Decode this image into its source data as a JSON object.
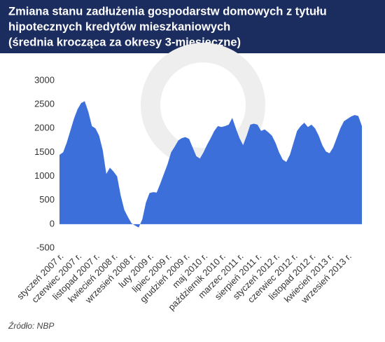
{
  "chart_data": {
    "type": "area",
    "title": [
      "Zmiana stanu zadłużenia gospodarstw domowych z tytułu",
      "hipotecznych kredytów mieszkaniowych",
      "(średnia krocząca za okresy 3-miesięczne)"
    ],
    "source": "Źródło: NBP",
    "color": "#3d6fdb",
    "categories": [
      "styczeń 2007 r.",
      null,
      null,
      null,
      null,
      "czerwiec 2007 r.",
      null,
      null,
      null,
      null,
      "listopad 2007 r.",
      null,
      null,
      null,
      null,
      "kwiecień 2008 r.",
      null,
      null,
      null,
      null,
      "wrzesień 2008 r.",
      null,
      null,
      null,
      null,
      "luty 2009 r.",
      null,
      null,
      null,
      null,
      "lipiec 2009 r.",
      null,
      null,
      null,
      null,
      "grudzień 2009 r.",
      null,
      null,
      null,
      null,
      "maj 2010 r.",
      null,
      null,
      null,
      null,
      "październik 2010 r.",
      null,
      null,
      null,
      null,
      "marzec 2011 r.",
      null,
      null,
      null,
      null,
      "sierpień 2011 r.",
      null,
      null,
      null,
      null,
      "styczeń 2012 r.",
      null,
      null,
      null,
      null,
      "czerwiec 2012 r.",
      null,
      null,
      null,
      null,
      "listopad 2012 r.",
      null,
      null,
      null,
      null,
      "kwiecień 2013 r.",
      null,
      null,
      null,
      null,
      "wrzesień 2013 r.",
      null,
      null,
      null,
      null
    ],
    "values": [
      1450,
      1500,
      1700,
      1950,
      2200,
      2400,
      2530,
      2570,
      2350,
      2050,
      2000,
      1850,
      1550,
      1050,
      1180,
      1100,
      1000,
      600,
      300,
      150,
      20,
      -30,
      -70,
      100,
      450,
      650,
      670,
      660,
      850,
      1050,
      1250,
      1500,
      1620,
      1750,
      1800,
      1820,
      1780,
      1600,
      1420,
      1370,
      1500,
      1660,
      1800,
      1950,
      2050,
      2030,
      2050,
      2080,
      2220,
      2000,
      1800,
      1650,
      1850,
      2080,
      2100,
      2080,
      1950,
      1980,
      1920,
      1850,
      1700,
      1500,
      1350,
      1300,
      1450,
      1700,
      1950,
      2050,
      2120,
      2030,
      2080,
      2000,
      1850,
      1650,
      1520,
      1480,
      1600,
      1800,
      2000,
      2150,
      2200,
      2250,
      2280,
      2260,
      2050
    ],
    "ylim": [
      -500,
      3000
    ],
    "yticks": [
      -500,
      0,
      500,
      1000,
      1500,
      2000,
      2500,
      3000
    ]
  }
}
